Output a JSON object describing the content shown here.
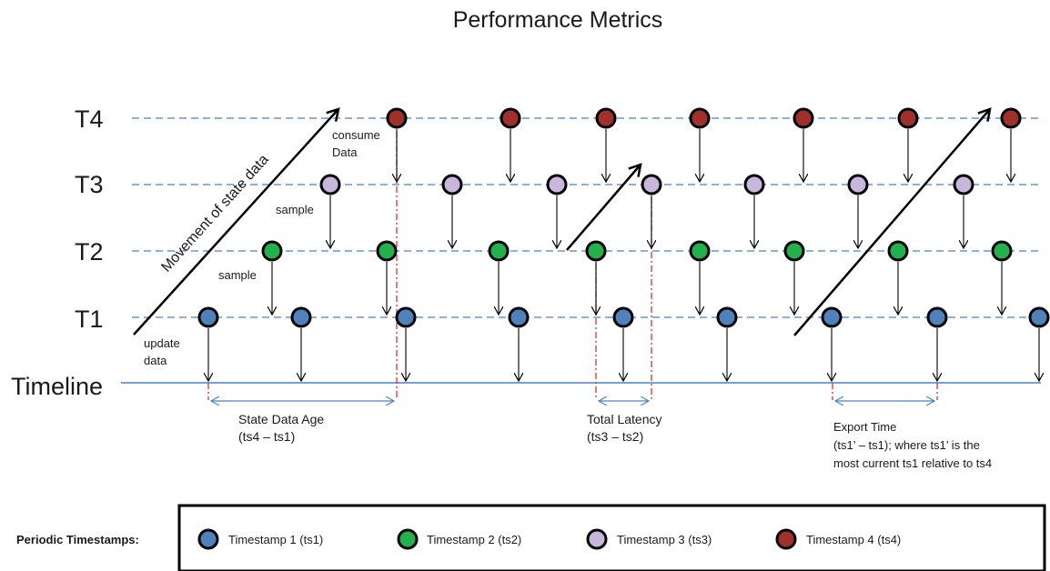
{
  "title": "Performance Metrics",
  "rows": {
    "t4": "T4",
    "t3": "T3",
    "t2": "T2",
    "t1": "T1",
    "timeline": "Timeline"
  },
  "annotations": {
    "movement": "Movement of state data",
    "consume_line1": "consume",
    "consume_line2": "Data",
    "sample_t3": "sample",
    "sample_t2": "sample",
    "update_line1": "update",
    "update_line2": "data"
  },
  "measures": {
    "state_age_line1": "State Data Age",
    "state_age_line2": "(ts4 – ts1)",
    "latency_line1": "Total Latency",
    "latency_line2": "(ts3 – ts2)",
    "export_line1": "Export Time",
    "export_line2": "(ts1’ – ts1); where ts1’ is the",
    "export_line3": "most current ts1 relative to ts4"
  },
  "legend": {
    "heading": "Periodic Timestamps:",
    "ts1": "Timestamp 1 (ts1)",
    "ts2": "Timestamp 2 (ts2)",
    "ts3": "Timestamp 3 (ts3)",
    "ts4": "Timestamp 4 (ts4)"
  },
  "colors": {
    "ts1": "#4f81bd",
    "ts2": "#22b14c",
    "ts3": "#c9b6dc",
    "ts4": "#a0302c",
    "guide": "#4f81bd",
    "timeline": "#4f81bd",
    "measure_marker": "#e03030"
  }
}
